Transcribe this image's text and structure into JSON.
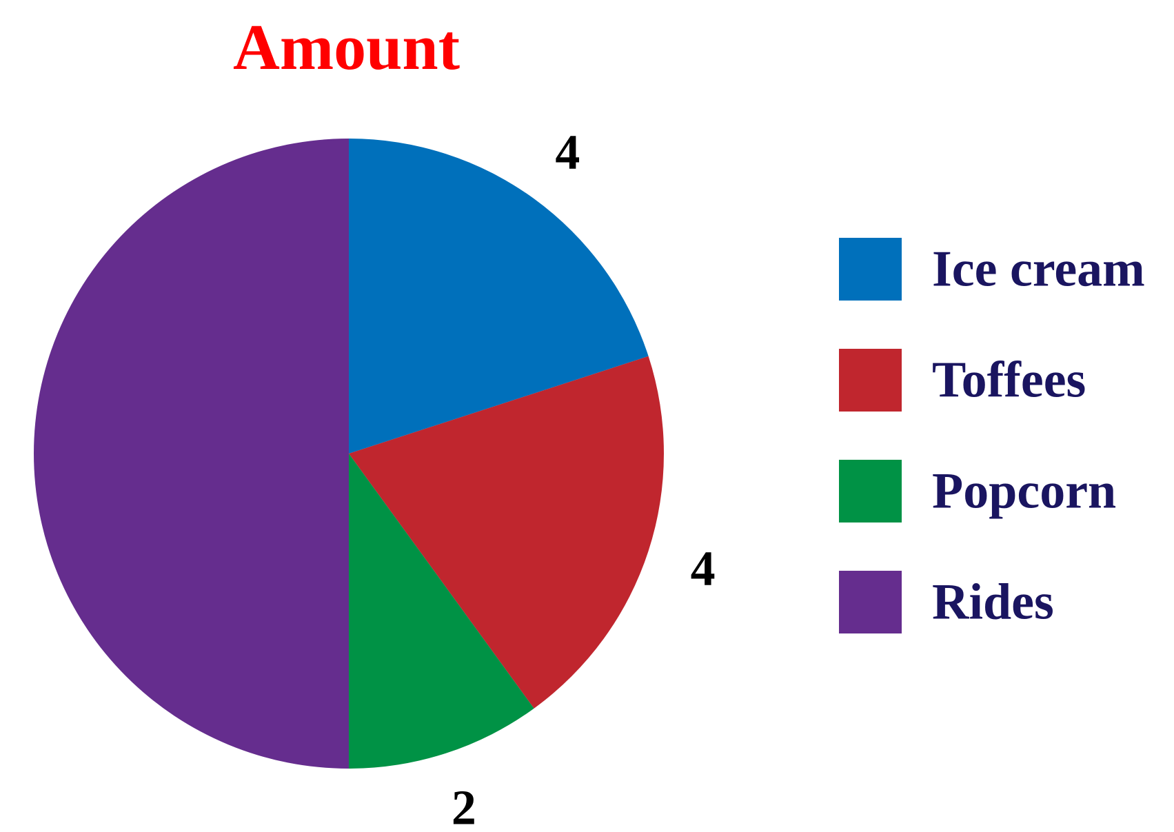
{
  "chart_data": {
    "type": "pie",
    "title": "Amount",
    "categories": [
      "Ice cream",
      "Toffees",
      "Popcorn",
      "Rides"
    ],
    "values": [
      4,
      4,
      2,
      10
    ],
    "colors": [
      "#0070bb",
      "#c0262e",
      "#009245",
      "#652d8e"
    ],
    "start_angle_deg": 0,
    "direction": "clockwise",
    "legend_position": "right",
    "show_data_labels": true
  },
  "colors": {
    "title": "#ff0000",
    "legend_text": "#1a1560",
    "label_text": "#000000"
  }
}
